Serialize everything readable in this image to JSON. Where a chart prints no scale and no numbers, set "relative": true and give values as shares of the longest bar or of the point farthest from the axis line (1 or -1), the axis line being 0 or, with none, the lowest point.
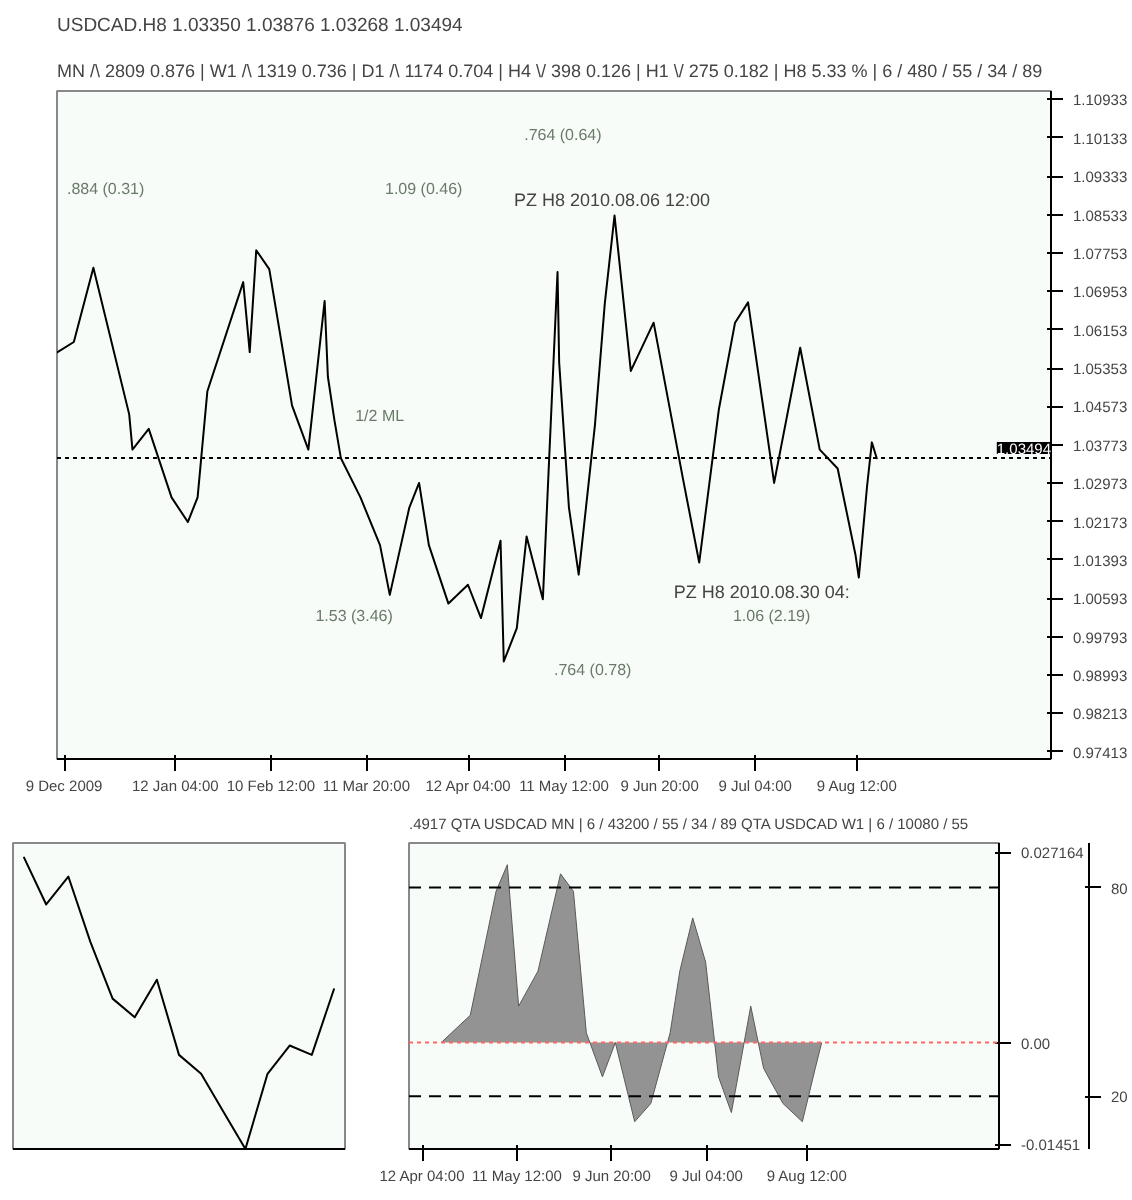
{
  "chart_data": [
    {
      "type": "line",
      "title": "USDCAD.H8  1.03350 1.03876 1.03268 1.03494",
      "subtitle": "MN /\\ 2809   0.876  |  W1 /\\ 1319   0.736  |  D1 /\\ 1174   0.704  |  H4 \\/ 398   0.126  |  H1 \\/ 275   0.182  |  H8  5.33 %  | 6 / 480 / 55 / 34 / 89",
      "x": [
        "2009-12-07",
        "2009-12-12",
        "2009-12-18",
        "2009-12-29",
        "2009-12-30",
        "2010-01-04",
        "2010-01-11",
        "2010-01-16",
        "2010-01-19",
        "2010-01-22",
        "2010-02-02",
        "2010-02-04",
        "2010-02-06",
        "2010-02-10",
        "2010-02-17",
        "2010-02-22",
        "2010-02-27",
        "2010-02-28",
        "2010-03-02",
        "2010-03-04",
        "2010-03-10",
        "2010-03-16",
        "2010-03-19",
        "2010-03-25",
        "2010-03-28",
        "2010-03-31",
        "2010-04-06",
        "2010-04-12",
        "2010-04-16",
        "2010-04-22",
        "2010-04-23",
        "2010-04-27",
        "2010-04-30",
        "2010-05-05",
        "2010-05-09T12:00",
        "2010-05-10",
        "2010-05-13",
        "2010-05-16",
        "2010-05-21",
        "2010-05-24",
        "2010-05-27",
        "2010-06-01",
        "2010-06-08",
        "2010-06-17",
        "2010-06-22",
        "2010-06-28",
        "2010-07-03",
        "2010-07-07",
        "2010-07-15",
        "2010-07-23",
        "2010-07-29",
        "2010-08-03T12:00",
        "2010-08-09",
        "2010-08-10",
        "2010-08-12T12:00",
        "2010-08-14",
        "2010-08-15T12:00"
      ],
      "series": [
        {
          "color": "#000000",
          "values": [
            1.0569,
            1.059,
            1.0744,
            1.044,
            1.0367,
            1.041,
            1.0268,
            1.0217,
            1.0268,
            1.0488,
            1.0714,
            1.0569,
            1.078,
            1.0741,
            1.0458,
            1.0367,
            1.0675,
            1.0518,
            1.0428,
            1.0349,
            1.0268,
            1.0169,
            1.0066,
            1.0247,
            1.0298,
            1.0169,
            1.0048,
            1.0087,
            1.0018,
            1.0178,
            0.9928,
            0.9997,
            1.0187,
            1.0057,
            1.0735,
            1.0548,
            1.0247,
            1.0108,
            1.0419,
            1.0669,
            1.0852,
            1.053,
            1.063,
            1.0307,
            1.0133,
            1.0449,
            1.063,
            1.0672,
            1.0298,
            1.0578,
            1.0367,
            1.0328,
            1.0148,
            1.0102,
            1.0289,
            1.0382,
            1.0349
          ]
        }
      ],
      "xlim": [
        "2009-12-06T20:00",
        "2010-10-08"
      ],
      "xticks": [
        {
          "value": "2009-12-09",
          "label": "9 Dec 2009"
        },
        {
          "value": "2010-01-12T04:00",
          "label": "12 Jan 04:00"
        },
        {
          "value": "2010-02-10T12:00",
          "label": "10 Feb 12:00"
        },
        {
          "value": "2010-03-11T20:00",
          "label": "11 Mar 20:00"
        },
        {
          "value": "2010-04-12T04:00",
          "label": "12 Apr 04:00"
        },
        {
          "value": "2010-05-11T12:00",
          "label": "11 May 12:00"
        },
        {
          "value": "2010-06-09T20:00",
          "label": "9 Jun 20:00"
        },
        {
          "value": "2010-07-09T04:00",
          "label": "9 Jul 04:00"
        },
        {
          "value": "2010-08-09T12:00",
          "label": "9 Aug 12:00"
        }
      ],
      "ylim": [
        0.9726,
        1.111
      ],
      "yticks": [
        1.10933,
        1.10133,
        1.09333,
        1.08533,
        1.07753,
        1.06953,
        1.06153,
        1.05353,
        1.04573,
        1.03773,
        1.02973,
        1.02173,
        1.01393,
        1.00593,
        0.99793,
        0.98993,
        0.98213,
        0.97413
      ],
      "ref_lines": [
        {
          "axis": "y",
          "value": 1.03494,
          "label": "1.03494",
          "color": "#000000",
          "line_style": "dotted"
        }
      ],
      "annotations": [
        {
          "text": "PZ H8  2010.08.06 12:00",
          "x": "2010-05-27",
          "y": 1.0852
        },
        {
          "text": "PZ H8  2010.08.30 04:",
          "x": "2010-08-10",
          "y": 1.0102
        },
        "1/2 ML",
        ".884 (0.31)",
        "1.09 (0.46)",
        "1.53 (3.46)",
        ".764 (0.64)",
        "1.06 (2.19)",
        ".764 (0.78)"
      ]
    },
    {
      "type": "line",
      "relative": true,
      "tick_labels": false,
      "categories": [
        null,
        null,
        null,
        null,
        null,
        null,
        null,
        null,
        null,
        null,
        null,
        null,
        null,
        null,
        null
      ],
      "series": [
        {
          "color": "#000000",
          "values": [
            1,
            0.839,
            0.935,
            0.71,
            0.516,
            0.452,
            0.581,
            0.323,
            0.258,
            0.129,
            0,
            0.258,
            0.355,
            0.323,
            0.548
          ]
        }
      ]
    },
    {
      "type": "area",
      "title": ".4917  QTA USDCAD MN | 6 / 43200 / 55 / 34 / 89  QTA USDCAD W1 | 6 / 10080 / 55",
      "x": [
        "2010-04-18",
        "2010-04-27",
        "2010-05-05",
        "2010-05-08T12:00",
        "2010-05-12",
        "2010-05-18",
        "2010-05-25",
        "2010-05-29",
        "2010-06-02",
        "2010-06-07",
        "2010-06-11",
        "2010-06-17",
        "2010-06-22",
        "2010-06-28",
        "2010-07-01",
        "2010-07-05",
        "2010-07-09",
        "2010-07-13",
        "2010-07-17",
        "2010-07-23",
        "2010-07-27",
        "2010-08-02",
        "2010-08-08",
        "2010-08-12",
        "2010-08-14"
      ],
      "series": [
        {
          "color": "#808080",
          "values": [
            0,
            0.0039,
            0.0216,
            0.0254,
            0.0052,
            0.0102,
            0.0241,
            0.0216,
            0.0014,
            -0.0049,
            0,
            -0.0113,
            -0.0087,
            0.0014,
            0.0102,
            0.0178,
            0.0115,
            -0.0049,
            -0.01,
            0.0052,
            -0.0037,
            -0.0087,
            -0.0113,
            -0.0037,
            0
          ]
        }
      ],
      "xlim": [
        "2010-04-08",
        "2010-10-08"
      ],
      "xticks": [
        {
          "value": "2010-04-12T04:00",
          "label": "12 Apr 04:00"
        },
        {
          "value": "2010-05-11T12:00",
          "label": "11 May 12:00"
        },
        {
          "value": "2010-06-09T20:00",
          "label": "9 Jun 20:00"
        },
        {
          "value": "2010-07-09T04:00",
          "label": "9 Jul 04:00"
        },
        {
          "value": "2010-08-09T12:00",
          "label": "9 Aug 12:00"
        }
      ],
      "ylim": [
        -0.0152,
        0.0285
      ],
      "yticks": [
        0.027164,
        {
          "value": 0,
          "label": "0.00"
        },
        -0.01451
      ],
      "y2lim": [
        4.8,
        92.8
      ],
      "y2ticks": [
        80,
        20
      ],
      "ref_lines": [
        {
          "axis": "y",
          "value": 0,
          "color": "#ff6666",
          "line_style": "dotted"
        },
        {
          "axis": "y2",
          "value": 80,
          "color": "#000000",
          "line_style": "dashed"
        },
        {
          "axis": "y2",
          "value": 20,
          "color": "#000000",
          "line_style": "dashed"
        }
      ]
    }
  ]
}
